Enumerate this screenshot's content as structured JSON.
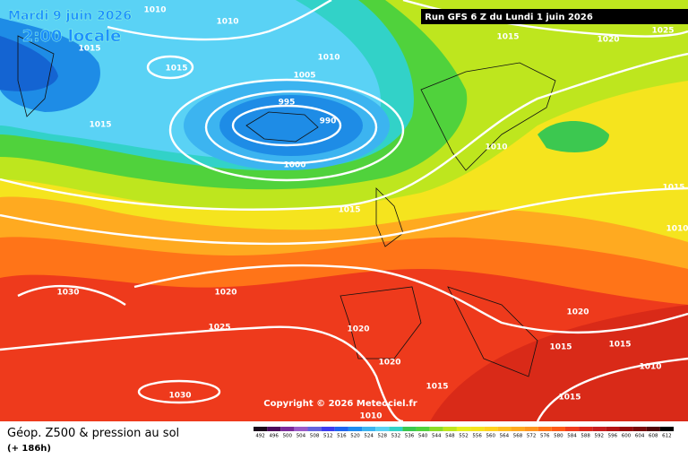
{
  "header": {
    "date": "Mardi 9 juin 2026",
    "time": "2:00 locale",
    "run": "Run GFS 6 Z du Lundi 1 juin 2026"
  },
  "copyright": "Copyright © 2026 Meteociel.fr",
  "isobar_labels": [
    "1010",
    "1010",
    "1015",
    "1015",
    "1010",
    "1005",
    "995",
    "990",
    "1000",
    "1015",
    "1015",
    "1010",
    "1015",
    "1020",
    "1025",
    "1015",
    "1010",
    "1030",
    "1020",
    "1025",
    "1020",
    "1020",
    "1020",
    "1015",
    "1015",
    "1010",
    "1015",
    "1015",
    "1030",
    "1010"
  ],
  "legend": {
    "title": "Géop. Z500 & pression au sol",
    "lead": "(+ 186h)",
    "scale": [
      492,
      496,
      500,
      504,
      508,
      512,
      516,
      520,
      524,
      528,
      532,
      536,
      540,
      544,
      548,
      552,
      556,
      560,
      564,
      568,
      572,
      576,
      580,
      584,
      588,
      592,
      596,
      600,
      604,
      608,
      612
    ]
  }
}
